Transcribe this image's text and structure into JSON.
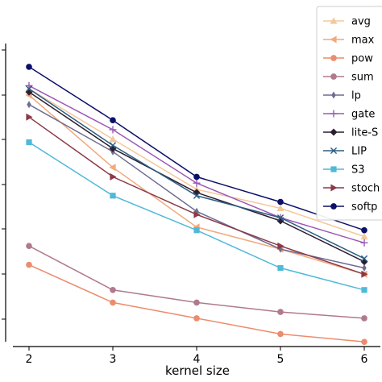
{
  "chart_data": {
    "type": "line",
    "title": "",
    "xlabel": "kernel size",
    "ylabel": "",
    "x": [
      2,
      3,
      4,
      5,
      6
    ],
    "xticks": [
      "2",
      "3",
      "4",
      "5",
      "6"
    ],
    "ylim": [
      0,
      1
    ],
    "grid": false,
    "legend_position": "top-right",
    "series": [
      {
        "name": "avg",
        "color": "#f6c79a",
        "marker": "triangle-up",
        "values": [
          0.82,
          0.66,
          0.5,
          0.44,
          0.35
        ]
      },
      {
        "name": "max",
        "color": "#f2a97c",
        "marker": "triangle-left",
        "values": [
          0.8,
          0.57,
          0.38,
          0.31,
          0.23
        ]
      },
      {
        "name": "pow",
        "color": "#ec8c6e",
        "marker": "circle",
        "values": [
          0.26,
          0.14,
          0.09,
          0.04,
          0.015
        ]
      },
      {
        "name": "sum",
        "color": "#b07a8e",
        "marker": "circle",
        "values": [
          0.32,
          0.18,
          0.14,
          0.11,
          0.09
        ]
      },
      {
        "name": "lp",
        "color": "#6d6c94",
        "marker": "diamond-thin",
        "values": [
          0.77,
          0.62,
          0.43,
          0.31,
          0.25
        ]
      },
      {
        "name": "gate",
        "color": "#9b59b6",
        "marker": "plus",
        "values": [
          0.83,
          0.69,
          0.52,
          0.41,
          0.33
        ]
      },
      {
        "name": "lite-S",
        "color": "#2c1e30",
        "marker": "diamond",
        "values": [
          0.81,
          0.63,
          0.49,
          0.4,
          0.27
        ]
      },
      {
        "name": "LIP",
        "color": "#2b5d84",
        "marker": "x",
        "values": [
          0.82,
          0.64,
          0.48,
          0.41,
          0.28
        ]
      },
      {
        "name": "S3",
        "color": "#4fb9d8",
        "marker": "square",
        "values": [
          0.65,
          0.48,
          0.37,
          0.25,
          0.18
        ]
      },
      {
        "name": "stoch",
        "color": "#8b3a46",
        "marker": "triangle-right",
        "values": [
          0.73,
          0.54,
          0.42,
          0.32,
          0.23
        ]
      },
      {
        "name": "softp",
        "color": "#0d1068",
        "marker": "circle",
        "values": [
          0.89,
          0.72,
          0.54,
          0.46,
          0.37
        ]
      }
    ]
  }
}
